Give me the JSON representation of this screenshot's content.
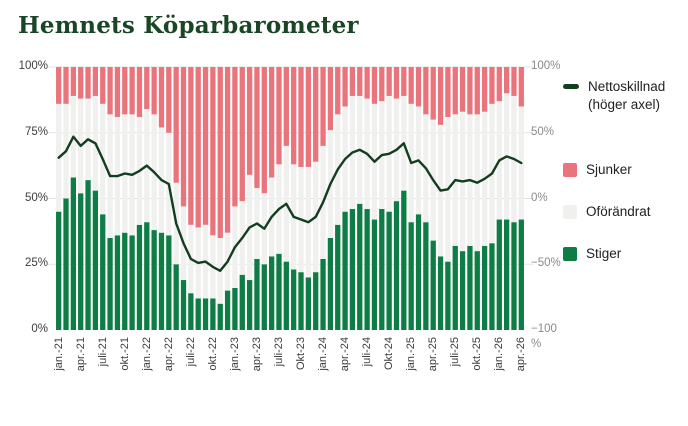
{
  "title": "Hemnets Köparbarometer",
  "colors": {
    "title": "#1a4625",
    "stiger": "#0d7c45",
    "oforandrat": "#f0f0ee",
    "sjunker": "#e9747c",
    "netto_line": "#133d1f",
    "gridline": "#e3e3e1",
    "axis_left_text": "#3d3d3d",
    "axis_right_text": "#8a8a8a"
  },
  "legend": {
    "items": [
      {
        "label": "Nettoskillnad (höger axel)",
        "swatch": "line",
        "color": "#133d1f"
      },
      {
        "label": "Sjunker",
        "swatch": "box",
        "color": "#e9747c"
      },
      {
        "label": "Oförändrat",
        "swatch": "box",
        "color": "#f0f0ee"
      },
      {
        "label": "Stiger",
        "swatch": "box",
        "color": "#0d7c45"
      }
    ]
  },
  "left_axis": {
    "ticks": [
      "100%",
      "75%",
      "50%",
      "25%",
      "0%"
    ]
  },
  "right_axis": {
    "ticks": [
      "100%",
      "50%",
      "0%",
      "−50%",
      "−100"
    ],
    "unit": "%"
  },
  "chart_data": {
    "type": "stacked-bar+line",
    "stack_total": 100,
    "left_ylim": [
      0,
      100
    ],
    "right_ylim": [
      -100,
      100
    ],
    "grid_values": [
      100,
      75,
      50,
      25
    ],
    "tick_every": 3,
    "tick_labels": [
      "jan.-21",
      "apr.-21",
      "juli-21",
      "okt.-21",
      "jan.-22",
      "apr.-22",
      "juli-22",
      "okt.-22",
      "jan.-23",
      "apr.-23",
      "juli-23",
      "Okt-23",
      "jan.-24",
      "apr.-24",
      "juli-24",
      "Okt-24",
      "jan.-25",
      "apr.-25",
      "juli-25",
      "okt.-25",
      "jan.-26",
      "apr.-26"
    ],
    "x": [
      "jan-21",
      "feb-21",
      "mar-21",
      "apr-21",
      "maj-21",
      "jun-21",
      "juli-21",
      "aug-21",
      "sep-21",
      "okt-21",
      "nov-21",
      "dec-21",
      "jan-22",
      "feb-22",
      "mar-22",
      "apr-22",
      "maj-22",
      "jun-22",
      "juli-22",
      "aug-22",
      "sep-22",
      "okt-22",
      "nov-22",
      "dec-22",
      "jan-23",
      "feb-23",
      "mar-23",
      "apr-23",
      "maj-23",
      "jun-23",
      "juli-23",
      "aug-23",
      "sep-23",
      "okt-23",
      "nov-23",
      "dec-23",
      "jan-24",
      "feb-24",
      "mar-24",
      "apr-24",
      "maj-24",
      "jun-24",
      "juli-24",
      "aug-24",
      "sep-24",
      "okt-24",
      "nov-24",
      "dec-24",
      "jan-25",
      "feb-25",
      "mar-25",
      "apr-25",
      "maj-25",
      "jun-25",
      "juli-25",
      "aug-25",
      "sep-25",
      "okt-25",
      "nov-25",
      "dec-25",
      "jan-26",
      "feb-26",
      "mar-26",
      "apr-26"
    ],
    "series": [
      {
        "name": "Stiger",
        "role": "bar",
        "axis": "left",
        "values": [
          45,
          50,
          58,
          52,
          57,
          53,
          44,
          35,
          36,
          37,
          36,
          40,
          41,
          38,
          37,
          36,
          25,
          19,
          14,
          12,
          12,
          12,
          10,
          15,
          16,
          21,
          19,
          27,
          25,
          28,
          29,
          26,
          23,
          22,
          20,
          22,
          27,
          35,
          40,
          45,
          46,
          48,
          46,
          42,
          46,
          45,
          49,
          53,
          41,
          44,
          41,
          34,
          28,
          26,
          32,
          30,
          32,
          30,
          32,
          33,
          42,
          42,
          41,
          42
        ]
      },
      {
        "name": "Oförändrat",
        "role": "bar",
        "axis": "left",
        "values": [
          41,
          36,
          31,
          36,
          31,
          36,
          42,
          47,
          45,
          45,
          46,
          41,
          43,
          44,
          40,
          39,
          31,
          28,
          26,
          27,
          28,
          24,
          25,
          22,
          31,
          28,
          40,
          27,
          27,
          30,
          34,
          44,
          40,
          40,
          42,
          42,
          43,
          41,
          42,
          40,
          43,
          41,
          42,
          44,
          41,
          44,
          39,
          36,
          45,
          41,
          41,
          46,
          50,
          55,
          50,
          53,
          50,
          52,
          51,
          53,
          45,
          48,
          48,
          43
        ]
      },
      {
        "name": "Sjunker",
        "role": "bar",
        "axis": "left",
        "values": [
          14,
          14,
          11,
          12,
          12,
          11,
          14,
          18,
          19,
          18,
          18,
          19,
          16,
          18,
          23,
          25,
          44,
          53,
          60,
          61,
          60,
          64,
          65,
          63,
          53,
          51,
          41,
          46,
          48,
          42,
          37,
          30,
          37,
          38,
          38,
          36,
          30,
          24,
          18,
          15,
          11,
          11,
          12,
          14,
          13,
          11,
          12,
          11,
          14,
          15,
          18,
          20,
          22,
          19,
          18,
          17,
          18,
          18,
          17,
          14,
          13,
          10,
          11,
          15
        ]
      },
      {
        "name": "Nettoskillnad (höger axel)",
        "role": "line",
        "axis": "right",
        "values": [
          31,
          36,
          47,
          40,
          45,
          42,
          30,
          17,
          17,
          19,
          18,
          21,
          25,
          20,
          14,
          11,
          -19,
          -34,
          -46,
          -49,
          -48,
          -52,
          -55,
          -48,
          -37,
          -30,
          -22,
          -19,
          -23,
          -14,
          -8,
          -4,
          -14,
          -16,
          -18,
          -14,
          -3,
          11,
          22,
          30,
          35,
          37,
          34,
          28,
          33,
          34,
          37,
          42,
          27,
          29,
          23,
          14,
          6,
          7,
          14,
          13,
          14,
          12,
          15,
          19,
          29,
          32,
          30,
          27
        ]
      }
    ]
  }
}
